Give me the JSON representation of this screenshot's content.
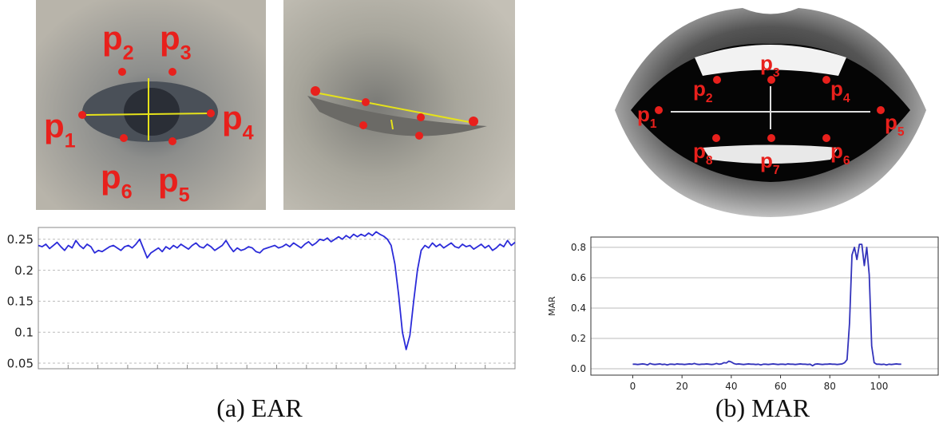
{
  "figure": {
    "eye_landmarks": [
      {
        "letter": "p",
        "index": "1"
      },
      {
        "letter": "p",
        "index": "2"
      },
      {
        "letter": "p",
        "index": "3"
      },
      {
        "letter": "p",
        "index": "4"
      },
      {
        "letter": "p",
        "index": "5"
      },
      {
        "letter": "p",
        "index": "6"
      }
    ],
    "mouth_landmarks": [
      {
        "letter": "p",
        "index": "1"
      },
      {
        "letter": "p",
        "index": "2"
      },
      {
        "letter": "p",
        "index": "3"
      },
      {
        "letter": "p",
        "index": "4"
      },
      {
        "letter": "p",
        "index": "5"
      },
      {
        "letter": "p",
        "index": "6"
      },
      {
        "letter": "p",
        "index": "7"
      },
      {
        "letter": "p",
        "index": "8"
      }
    ],
    "captions": [
      "(a) EAR",
      "(b) MAR"
    ]
  },
  "chart_data": [
    {
      "type": "line",
      "series": [
        {
          "color": "#2b2bd9",
          "values": [
            0.24,
            0.238,
            0.242,
            0.235,
            0.24,
            0.245,
            0.238,
            0.232,
            0.24,
            0.236,
            0.248,
            0.24,
            0.235,
            0.242,
            0.238,
            0.228,
            0.232,
            0.23,
            0.234,
            0.238,
            0.24,
            0.236,
            0.232,
            0.238,
            0.24,
            0.236,
            0.242,
            0.25,
            0.235,
            0.22,
            0.228,
            0.232,
            0.236,
            0.23,
            0.238,
            0.234,
            0.24,
            0.236,
            0.242,
            0.238,
            0.234,
            0.24,
            0.244,
            0.238,
            0.236,
            0.242,
            0.238,
            0.232,
            0.236,
            0.24,
            0.248,
            0.238,
            0.23,
            0.236,
            0.232,
            0.234,
            0.238,
            0.236,
            0.23,
            0.228,
            0.234,
            0.236,
            0.238,
            0.24,
            0.236,
            0.238,
            0.242,
            0.238,
            0.244,
            0.24,
            0.236,
            0.242,
            0.246,
            0.24,
            0.244,
            0.25,
            0.248,
            0.252,
            0.246,
            0.25,
            0.254,
            0.25,
            0.256,
            0.252,
            0.258,
            0.254,
            0.258,
            0.255,
            0.26,
            0.256,
            0.262,
            0.258,
            0.255,
            0.25,
            0.24,
            0.21,
            0.16,
            0.1,
            0.072,
            0.095,
            0.15,
            0.2,
            0.232,
            0.24,
            0.236,
            0.244,
            0.238,
            0.242,
            0.236,
            0.24,
            0.244,
            0.238,
            0.236,
            0.242,
            0.238,
            0.24,
            0.234,
            0.238,
            0.242,
            0.236,
            0.24,
            0.232,
            0.236,
            0.242,
            0.238,
            0.248,
            0.24,
            0.245
          ]
        }
      ],
      "ylim": [
        0.041,
        0.269
      ],
      "yticks": [
        0.05,
        0.1,
        0.15,
        0.2,
        0.25
      ],
      "grid": true
    },
    {
      "type": "line",
      "ylabel": "MAR",
      "x": [
        0,
        1,
        2,
        3,
        4,
        5,
        6,
        7,
        8,
        9,
        10,
        11,
        12,
        13,
        14,
        15,
        16,
        17,
        18,
        19,
        20,
        21,
        22,
        23,
        24,
        25,
        26,
        27,
        28,
        29,
        30,
        31,
        32,
        33,
        34,
        35,
        36,
        37,
        38,
        39,
        40,
        41,
        42,
        43,
        44,
        45,
        46,
        47,
        48,
        49,
        50,
        51,
        52,
        53,
        54,
        55,
        56,
        57,
        58,
        59,
        60,
        61,
        62,
        63,
        64,
        65,
        66,
        67,
        68,
        69,
        70,
        71,
        72,
        73,
        74,
        75,
        76,
        77,
        78,
        79,
        80,
        81,
        82,
        83,
        84,
        85,
        86,
        87,
        88,
        89,
        90,
        91,
        92,
        93,
        94,
        95,
        96,
        97,
        98,
        99,
        100,
        101,
        102,
        103,
        104,
        105,
        106,
        107,
        108,
        109
      ],
      "series": [
        {
          "color": "#3333bb",
          "values": [
            0.03,
            0.03,
            0.028,
            0.03,
            0.032,
            0.03,
            0.025,
            0.035,
            0.03,
            0.028,
            0.03,
            0.032,
            0.028,
            0.03,
            0.025,
            0.03,
            0.03,
            0.028,
            0.032,
            0.03,
            0.03,
            0.028,
            0.03,
            0.032,
            0.03,
            0.035,
            0.03,
            0.028,
            0.03,
            0.03,
            0.032,
            0.03,
            0.028,
            0.03,
            0.035,
            0.03,
            0.032,
            0.04,
            0.038,
            0.05,
            0.045,
            0.035,
            0.03,
            0.032,
            0.03,
            0.028,
            0.03,
            0.032,
            0.03,
            0.03,
            0.028,
            0.03,
            0.025,
            0.03,
            0.03,
            0.028,
            0.03,
            0.032,
            0.03,
            0.028,
            0.03,
            0.03,
            0.028,
            0.032,
            0.03,
            0.03,
            0.028,
            0.03,
            0.032,
            0.03,
            0.03,
            0.028,
            0.03,
            0.02,
            0.03,
            0.032,
            0.03,
            0.028,
            0.03,
            0.03,
            0.032,
            0.03,
            0.03,
            0.028,
            0.03,
            0.032,
            0.04,
            0.06,
            0.3,
            0.75,
            0.8,
            0.72,
            0.82,
            0.82,
            0.68,
            0.8,
            0.62,
            0.15,
            0.04,
            0.03,
            0.03,
            0.028,
            0.03,
            0.025,
            0.03,
            0.028,
            0.03,
            0.032,
            0.03,
            0.03
          ]
        }
      ],
      "xlim": [
        -17,
        124
      ],
      "ylim": [
        -0.042,
        0.868
      ],
      "xticks": [
        0,
        20,
        40,
        60,
        80,
        100
      ],
      "yticks": [
        {
          "value": 0,
          "label": "0.0"
        },
        0.2,
        0.4,
        0.6,
        0.8
      ],
      "grid": true
    }
  ]
}
